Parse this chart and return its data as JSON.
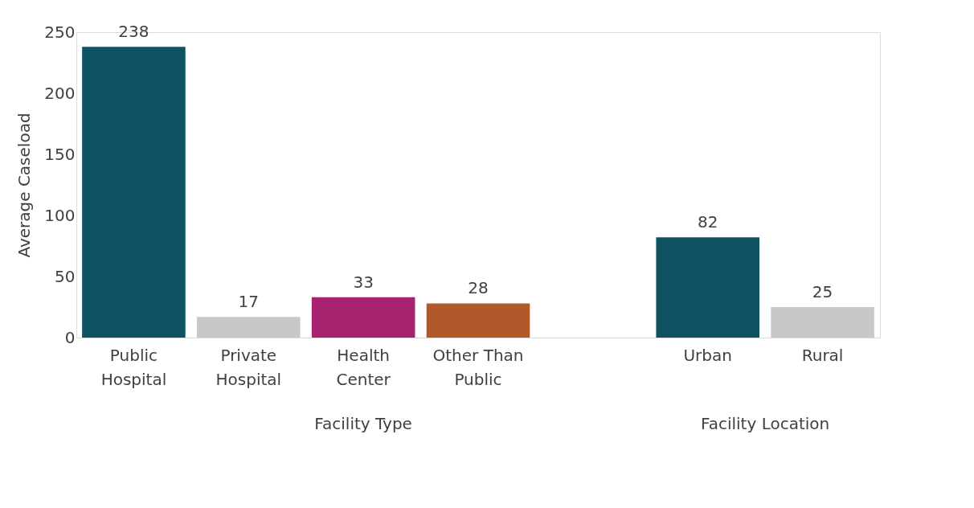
{
  "chart_data": {
    "type": "bar",
    "ylabel": "Average Caseload",
    "categories": [
      "Public Hospital",
      "Private Hospital",
      "Health Center",
      "Other Than Public",
      null,
      "Urban",
      "Rural"
    ],
    "values": [
      238,
      17,
      33,
      28,
      null,
      82,
      25
    ],
    "colors": [
      "#0f5261",
      "#c8c8c8",
      "#a8226f",
      "#b05a2c",
      "#ffffff",
      "#0f5261",
      "#c8c8c8"
    ],
    "ylim": [
      0,
      250
    ],
    "yticks": [
      0,
      50,
      100,
      150,
      200,
      250
    ],
    "grid": false,
    "data_labels": true,
    "annotations": [
      "Facility Type",
      "Facility Location"
    ]
  }
}
